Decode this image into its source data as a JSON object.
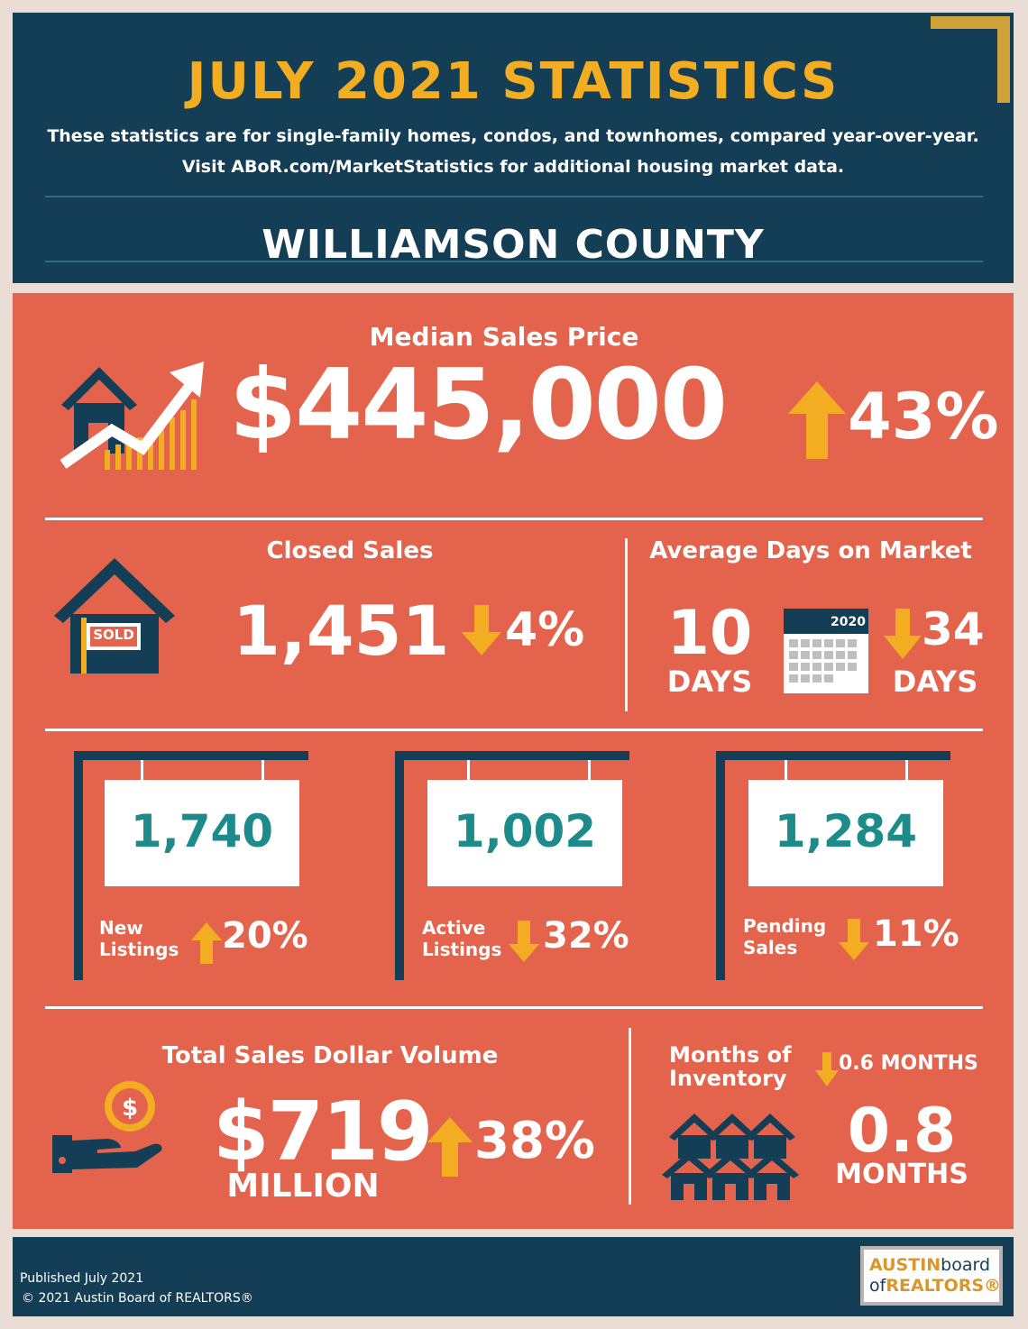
{
  "header": {
    "title": "JULY 2021 STATISTICS",
    "subtitle_line1": "These statistics are for single-family homes, condos, and townhomes, compared year-over-year.",
    "subtitle_line2": "Visit ABoR.com/MarketStatistics for additional housing market data.",
    "county": "WILLIAMSON COUNTY"
  },
  "median": {
    "label": "Median Sales Price",
    "value": "$445,000",
    "change": "43%",
    "direction": "up"
  },
  "closed": {
    "label": "Closed Sales",
    "value": "1,451",
    "change": "4%",
    "direction": "down",
    "sign_text": "SOLD"
  },
  "dom": {
    "label": "Average Days on Market",
    "value": "10",
    "unit": "DAYS",
    "calendar_year": "2020",
    "change": "34",
    "change_unit": "DAYS",
    "direction": "down"
  },
  "signs": [
    {
      "value": "1,740",
      "label_line1": "New",
      "label_line2": "Listings",
      "change": "20%",
      "direction": "up"
    },
    {
      "value": "1,002",
      "label_line1": "Active",
      "label_line2": "Listings",
      "change": "32%",
      "direction": "down"
    },
    {
      "value": "1,284",
      "label_line1": "Pending",
      "label_line2": "Sales",
      "change": "11%",
      "direction": "down"
    }
  ],
  "volume": {
    "label": "Total Sales Dollar Volume",
    "value": "$719",
    "unit": "MILLION",
    "change": "38%",
    "direction": "up"
  },
  "inventory": {
    "label_line1": "Months of",
    "label_line2": "Inventory",
    "change": "0.6 MONTHS",
    "direction": "down",
    "value": "0.8",
    "unit": "MONTHS"
  },
  "footer": {
    "published": "Published July 2021",
    "copyright": "© 2021 Austin Board of REALTORS®",
    "logo_part1": "AUSTIN",
    "logo_part2": "board",
    "logo_part3": "of",
    "logo_part4": "REALTORS®"
  },
  "colors": {
    "navy": "#133e55",
    "coral": "#e3634c",
    "gold": "#f2ad22",
    "teal": "#1c8b89"
  }
}
